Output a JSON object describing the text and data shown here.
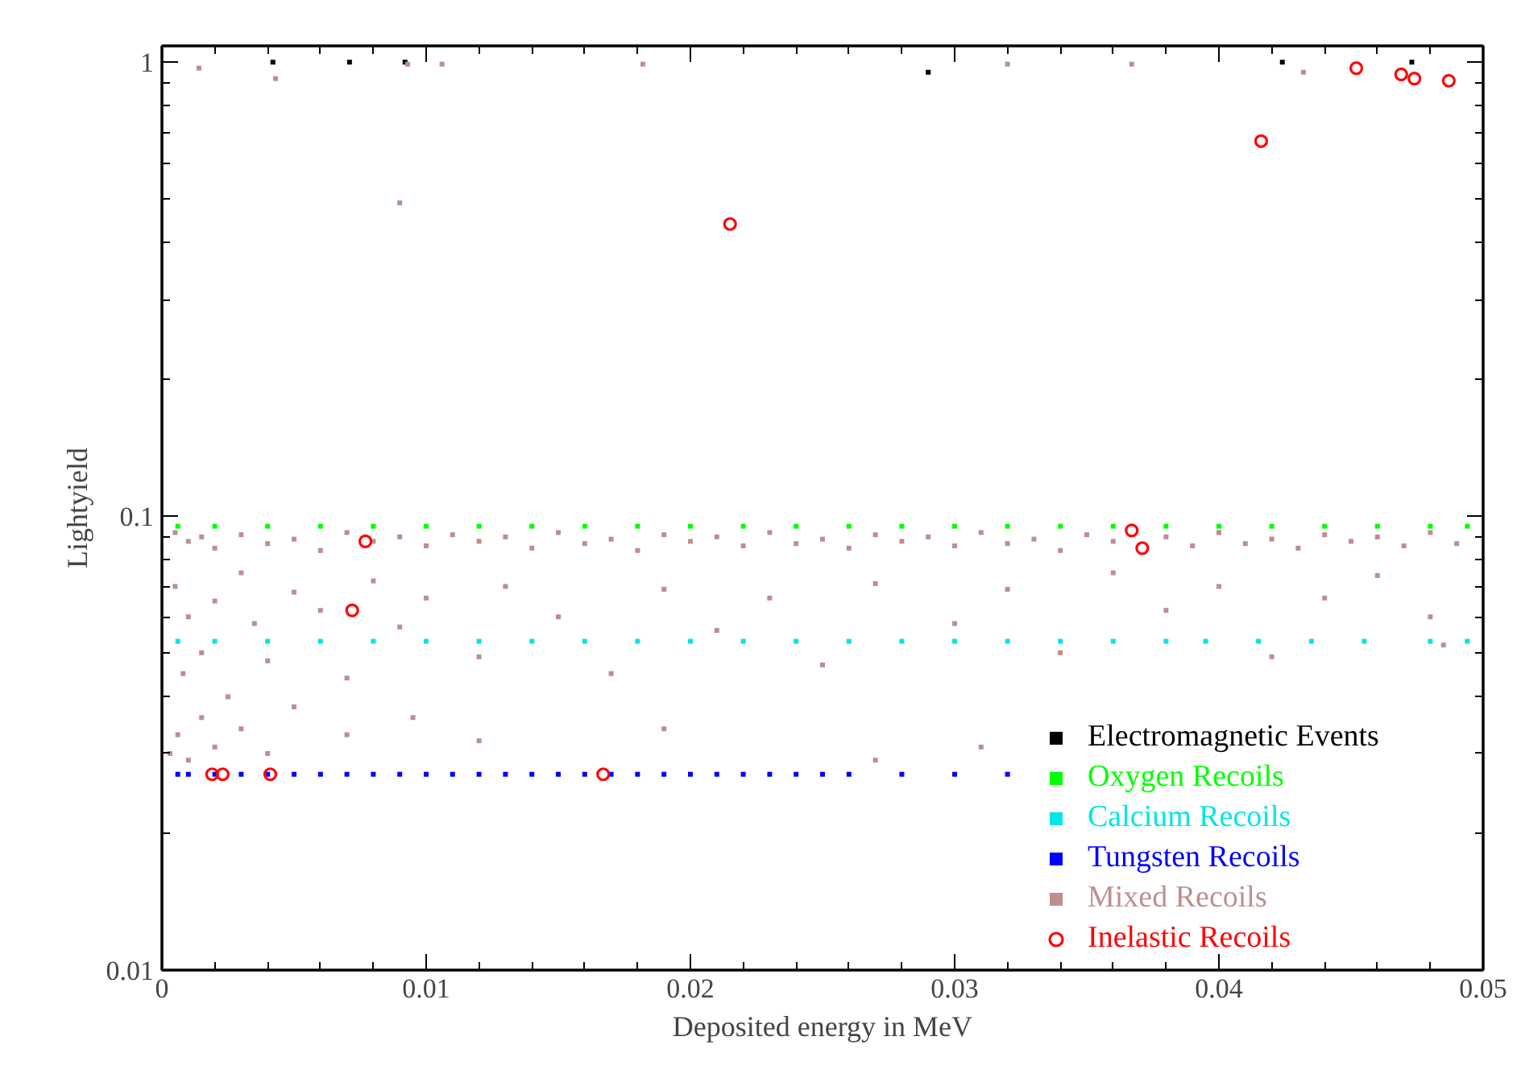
{
  "chart_data": {
    "type": "scatter",
    "xlabel": "Deposited energy in MeV",
    "ylabel": "Lightyield",
    "xlim": [
      0,
      0.05
    ],
    "ylim": [
      0.01,
      1.086
    ],
    "xticks": [
      0,
      0.01,
      0.02,
      0.03,
      0.04,
      0.05
    ],
    "yticks": [
      0.01,
      0.1,
      1
    ],
    "log": "y",
    "grid": false,
    "legend": "bottom right",
    "series": [
      {
        "name": "Electromagnetic Events",
        "color": "#000000",
        "marker": "square",
        "x": [
          0.0042,
          0.0071,
          0.0092,
          0.029,
          0.0424,
          0.0473
        ],
        "values": [
          1.0,
          1.0,
          1.0,
          0.95,
          1.0,
          1.0
        ]
      },
      {
        "name": "Oxygen Recoils",
        "color": "#00ff00",
        "marker": "square",
        "x": [
          0.0006,
          0.002,
          0.004,
          0.006,
          0.008,
          0.01,
          0.012,
          0.014,
          0.016,
          0.018,
          0.02,
          0.022,
          0.024,
          0.026,
          0.028,
          0.03,
          0.032,
          0.034,
          0.036,
          0.038,
          0.04,
          0.042,
          0.044,
          0.046,
          0.048,
          0.0494
        ],
        "values": [
          0.095,
          0.095,
          0.095,
          0.095,
          0.095,
          0.095,
          0.095,
          0.095,
          0.095,
          0.095,
          0.095,
          0.095,
          0.095,
          0.095,
          0.095,
          0.095,
          0.095,
          0.095,
          0.095,
          0.095,
          0.095,
          0.095,
          0.095,
          0.095,
          0.095,
          0.095
        ]
      },
      {
        "name": "Calcium Recoils",
        "color": "#00e5e5",
        "marker": "square",
        "x": [
          0.0006,
          0.002,
          0.004,
          0.006,
          0.008,
          0.01,
          0.012,
          0.014,
          0.016,
          0.018,
          0.02,
          0.022,
          0.024,
          0.026,
          0.028,
          0.03,
          0.032,
          0.034,
          0.036,
          0.038,
          0.0395,
          0.0415,
          0.0435,
          0.0455,
          0.048,
          0.0494
        ],
        "values": [
          0.053,
          0.053,
          0.053,
          0.053,
          0.053,
          0.053,
          0.053,
          0.053,
          0.053,
          0.053,
          0.053,
          0.053,
          0.053,
          0.053,
          0.053,
          0.053,
          0.053,
          0.053,
          0.053,
          0.053,
          0.053,
          0.053,
          0.053,
          0.053,
          0.053,
          0.053
        ]
      },
      {
        "name": "Tungsten Recoils",
        "color": "#0000ff",
        "marker": "square",
        "x": [
          0.0006,
          0.001,
          0.002,
          0.003,
          0.004,
          0.005,
          0.006,
          0.007,
          0.008,
          0.009,
          0.01,
          0.011,
          0.012,
          0.013,
          0.014,
          0.015,
          0.016,
          0.017,
          0.018,
          0.019,
          0.02,
          0.021,
          0.022,
          0.023,
          0.024,
          0.025,
          0.026,
          0.028,
          0.03,
          0.032
        ],
        "values": [
          0.027,
          0.027,
          0.027,
          0.027,
          0.027,
          0.027,
          0.027,
          0.027,
          0.027,
          0.027,
          0.027,
          0.027,
          0.027,
          0.027,
          0.027,
          0.027,
          0.027,
          0.027,
          0.027,
          0.027,
          0.027,
          0.027,
          0.027,
          0.027,
          0.027,
          0.027,
          0.027,
          0.027,
          0.027,
          0.027
        ]
      },
      {
        "name": "Mixed Recoils",
        "color": "#bc8f8f",
        "marker": "square",
        "x": [
          0.0005,
          0.001,
          0.0015,
          0.002,
          0.003,
          0.004,
          0.005,
          0.006,
          0.007,
          0.008,
          0.009,
          0.01,
          0.011,
          0.012,
          0.013,
          0.014,
          0.015,
          0.016,
          0.017,
          0.018,
          0.019,
          0.02,
          0.021,
          0.022,
          0.023,
          0.024,
          0.025,
          0.026,
          0.027,
          0.028,
          0.029,
          0.03,
          0.031,
          0.032,
          0.033,
          0.034,
          0.035,
          0.036,
          0.038,
          0.039,
          0.04,
          0.041,
          0.042,
          0.043,
          0.044,
          0.045,
          0.046,
          0.047,
          0.048,
          0.049,
          0.0005,
          0.001,
          0.0008,
          0.0015,
          0.002,
          0.0025,
          0.003,
          0.0035,
          0.004,
          0.005,
          0.006,
          0.007,
          0.008,
          0.009,
          0.01,
          0.012,
          0.013,
          0.015,
          0.017,
          0.019,
          0.021,
          0.023,
          0.025,
          0.027,
          0.03,
          0.032,
          0.034,
          0.036,
          0.038,
          0.04,
          0.042,
          0.044,
          0.046,
          0.048,
          0.0485,
          0.0003,
          0.0006,
          0.001,
          0.0015,
          0.002,
          0.003,
          0.004,
          0.005,
          0.007,
          0.0095,
          0.012,
          0.019,
          0.027,
          0.031,
          0.0014,
          0.0043,
          0.009,
          0.0093,
          0.0106,
          0.0182,
          0.032,
          0.0367,
          0.0432
        ],
        "values": [
          0.092,
          0.088,
          0.09,
          0.085,
          0.091,
          0.087,
          0.089,
          0.084,
          0.092,
          0.088,
          0.09,
          0.086,
          0.091,
          0.088,
          0.09,
          0.085,
          0.092,
          0.087,
          0.089,
          0.084,
          0.091,
          0.088,
          0.09,
          0.086,
          0.092,
          0.087,
          0.089,
          0.085,
          0.091,
          0.088,
          0.09,
          0.086,
          0.092,
          0.087,
          0.089,
          0.084,
          0.091,
          0.088,
          0.09,
          0.086,
          0.092,
          0.087,
          0.089,
          0.085,
          0.091,
          0.088,
          0.09,
          0.086,
          0.092,
          0.087,
          0.07,
          0.06,
          0.045,
          0.05,
          0.065,
          0.04,
          0.075,
          0.058,
          0.048,
          0.068,
          0.062,
          0.044,
          0.072,
          0.057,
          0.066,
          0.049,
          0.07,
          0.06,
          0.045,
          0.069,
          0.056,
          0.066,
          0.047,
          0.071,
          0.058,
          0.069,
          0.05,
          0.075,
          0.062,
          0.07,
          0.049,
          0.066,
          0.074,
          0.06,
          0.052,
          0.03,
          0.033,
          0.029,
          0.036,
          0.031,
          0.034,
          0.03,
          0.038,
          0.033,
          0.036,
          0.032,
          0.034,
          0.029,
          0.031,
          0.97,
          0.92,
          0.49,
          0.99,
          0.99,
          0.99,
          0.99,
          0.99,
          0.95
        ]
      },
      {
        "name": "Inelastic Recoils",
        "color": "#ff0000",
        "marker": "circle",
        "x": [
          0.0215,
          0.0416,
          0.0452,
          0.0469,
          0.0474,
          0.0487,
          0.0077,
          0.0072,
          0.0367,
          0.0371,
          0.0019,
          0.0023,
          0.0041,
          0.0167
        ],
        "values": [
          0.44,
          0.67,
          0.97,
          0.94,
          0.92,
          0.91,
          0.088,
          0.062,
          0.093,
          0.085,
          0.027,
          0.027,
          0.027,
          0.027
        ]
      }
    ]
  }
}
